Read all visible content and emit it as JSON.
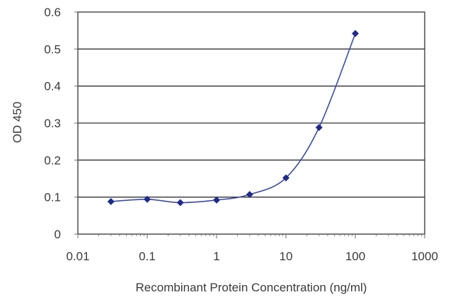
{
  "chart_data": {
    "type": "line",
    "title": "",
    "xlabel": "Recombinant Protein Concentration (ng/ml)",
    "ylabel": "OD 450",
    "x_scale": "log",
    "xlim": [
      0.01,
      1000
    ],
    "ylim": [
      0,
      0.6
    ],
    "x_ticks": [
      "0.01",
      "0.1",
      "1",
      "10",
      "100",
      "1000"
    ],
    "y_ticks": [
      "0",
      "0.1",
      "0.2",
      "0.3",
      "0.4",
      "0.5",
      "0.6"
    ],
    "grid": "horizontal",
    "legend": "none",
    "series": [
      {
        "x": [
          0.03,
          0.1,
          0.3,
          1,
          3,
          10,
          30,
          100
        ],
        "y": [
          0.088,
          0.094,
          0.085,
          0.092,
          0.107,
          0.152,
          0.288,
          0.542
        ],
        "color": "#1f2b8c"
      }
    ],
    "colors": {
      "line": "#3a4aa8",
      "marker": "#1a2380",
      "grid": "#333333",
      "plot_border": "#333333",
      "axis": "#6b6b6b"
    }
  }
}
